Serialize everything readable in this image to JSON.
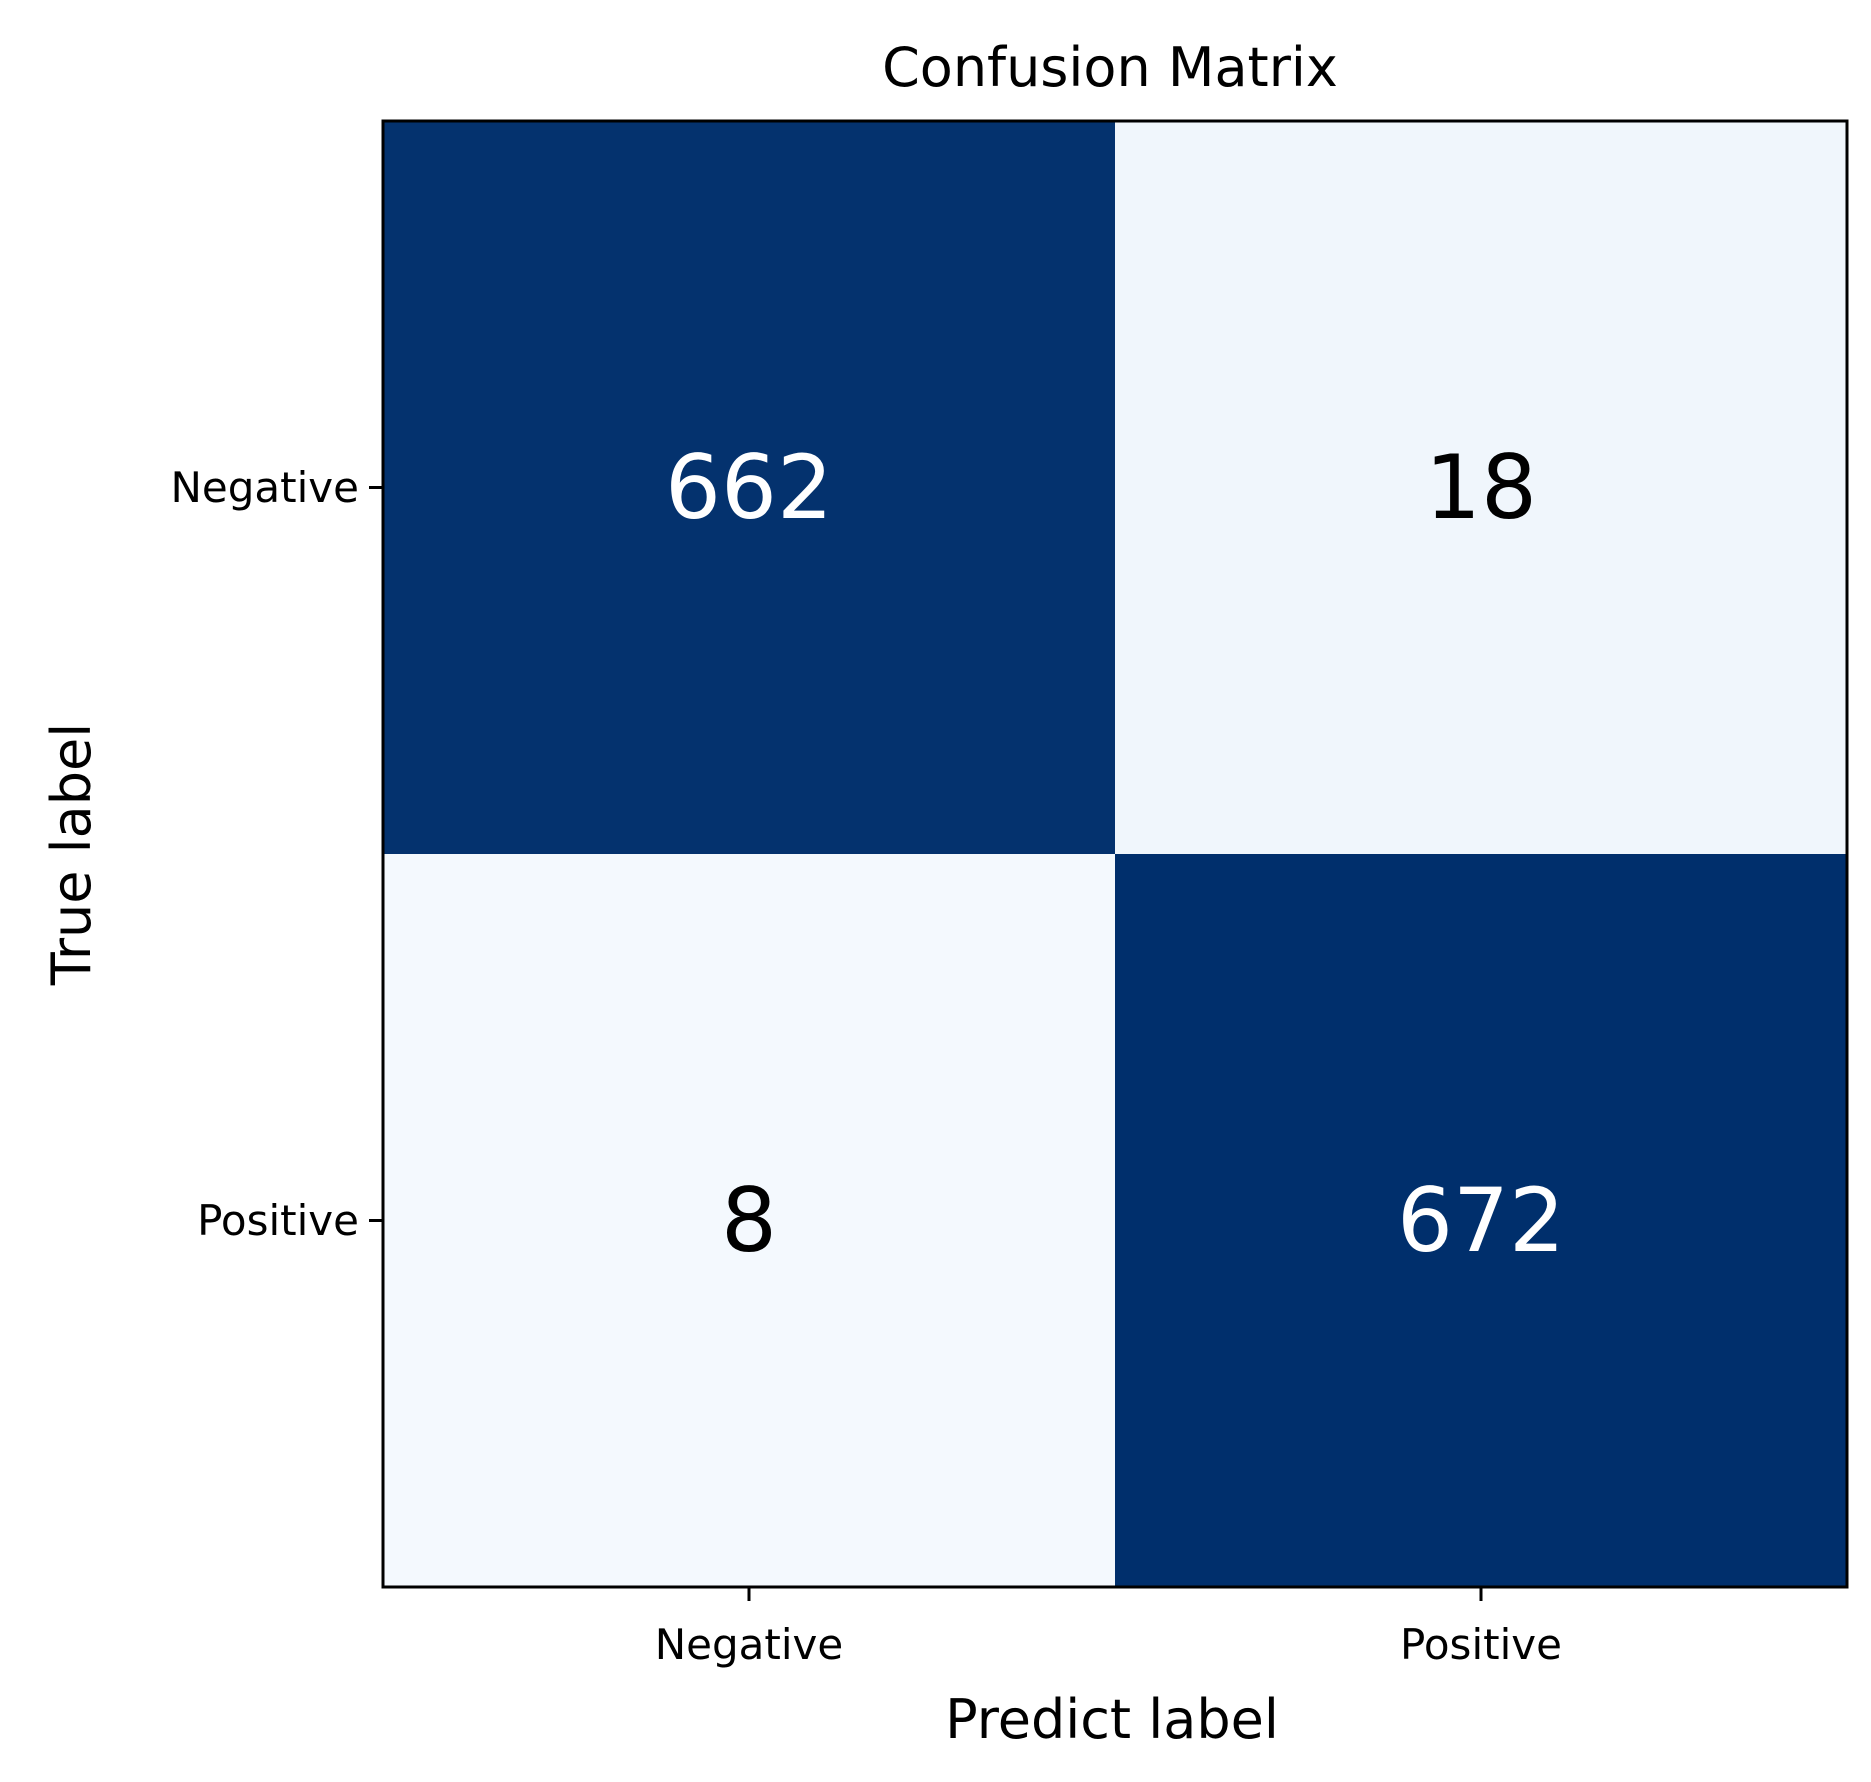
{
  "chart_data": {
    "type": "heatmap",
    "title": "Confusion Matrix",
    "xlabel": "Predict label",
    "ylabel": "True label",
    "x_categories": [
      "Negative",
      "Positive"
    ],
    "y_categories": [
      "Negative",
      "Positive"
    ],
    "values": [
      [
        662,
        18
      ],
      [
        8,
        672
      ]
    ],
    "colormap": "Blues",
    "colors": {
      "high": "#002f6c",
      "low": "#f4f9fe",
      "high_text": "#ffffff",
      "low_text": "#000000",
      "axis": "#000000"
    }
  }
}
